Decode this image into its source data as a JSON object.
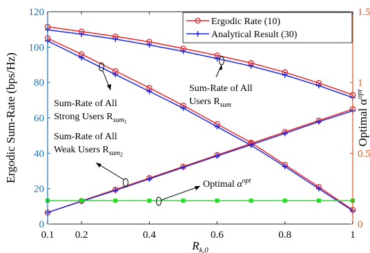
{
  "chart_data": {
    "type": "line",
    "x": [
      0.1,
      0.2,
      0.3,
      0.4,
      0.5,
      0.6,
      0.7,
      0.8,
      0.9,
      1.0
    ],
    "xlabel_base": "R",
    "xlabel_sub": "k,0",
    "ylabel_left": "Ergodic Sum-Rate (bps/Hz)",
    "ylabel_right_text": "Optimal α",
    "ylabel_right_sup": "opt",
    "xlim": [
      0.1,
      1.0
    ],
    "ylim_left": [
      0,
      120
    ],
    "ylim_right": [
      0,
      1.5
    ],
    "xticks": [
      "0.1",
      "0.2",
      "0.4",
      "0.6",
      "0.8",
      "1"
    ],
    "yticks_left": [
      "0",
      "20",
      "40",
      "60",
      "80",
      "100",
      "120"
    ],
    "yticks_right": [
      "0",
      "0.5",
      "1",
      "1.5"
    ],
    "grid": false,
    "legend_position": "top-right",
    "series": [
      {
        "name": "Ergodic Rate (10)",
        "group": "sum",
        "axis": "left",
        "color": "#e8262a",
        "marker": "circle",
        "values": [
          111.5,
          108.8,
          106.0,
          103.0,
          99.2,
          95.3,
          91.0,
          85.8,
          79.7,
          73.0
        ]
      },
      {
        "name": "Analytical Result (30)",
        "group": "sum",
        "axis": "left",
        "color": "#1f28e0",
        "marker": "plus",
        "values": [
          109.8,
          107.3,
          104.5,
          101.2,
          97.6,
          93.5,
          89.3,
          84.2,
          78.2,
          71.5
        ]
      },
      {
        "group": "strong",
        "axis": "left",
        "color": "#e8262a",
        "marker": "circle",
        "values": [
          105.0,
          96.0,
          86.5,
          77.0,
          67.0,
          56.5,
          46.0,
          33.5,
          21.0,
          8.0
        ]
      },
      {
        "group": "strong",
        "axis": "left",
        "color": "#1f28e0",
        "marker": "plus",
        "values": [
          103.5,
          94.0,
          84.5,
          75.0,
          65.5,
          55.0,
          44.5,
          32.5,
          20.0,
          7.5
        ]
      },
      {
        "group": "weak",
        "axis": "left",
        "color": "#e8262a",
        "marker": "circle",
        "values": [
          6.5,
          13.0,
          19.5,
          26.0,
          32.5,
          39.0,
          45.5,
          52.0,
          58.5,
          65.0
        ]
      },
      {
        "group": "weak",
        "axis": "left",
        "color": "#1f28e0",
        "marker": "plus",
        "values": [
          6.5,
          12.8,
          19.0,
          25.5,
          32.0,
          38.5,
          44.8,
          51.2,
          57.8,
          64.0
        ]
      },
      {
        "group": "alpha",
        "axis": "right",
        "color": "#22dd22",
        "marker": "square",
        "values": [
          0.165,
          0.165,
          0.165,
          0.165,
          0.165,
          0.165,
          0.165,
          0.165,
          0.165,
          0.165
        ]
      }
    ],
    "annotations": {
      "sum": {
        "line1": "Sum-Rate of All",
        "line2_text": "Users R",
        "line2_sub": "sum"
      },
      "strong": {
        "line1": "Sum-Rate of All",
        "line2_text": "Strong Users R",
        "line2_sub": "sum",
        "line2_sub2": "1"
      },
      "weak": {
        "line1": "Sum-Rate of All",
        "line2_text": "Weak Users R",
        "line2_sub": "sum",
        "line2_sub2": "2"
      },
      "alpha": {
        "text": "Optimal α",
        "sup": "opt"
      }
    },
    "colors": {
      "left_axis": "#1f6fb5",
      "right_axis": "#d9541e",
      "ergodic": "#e8262a",
      "analytical": "#1f28e0",
      "alpha": "#22dd22"
    }
  }
}
